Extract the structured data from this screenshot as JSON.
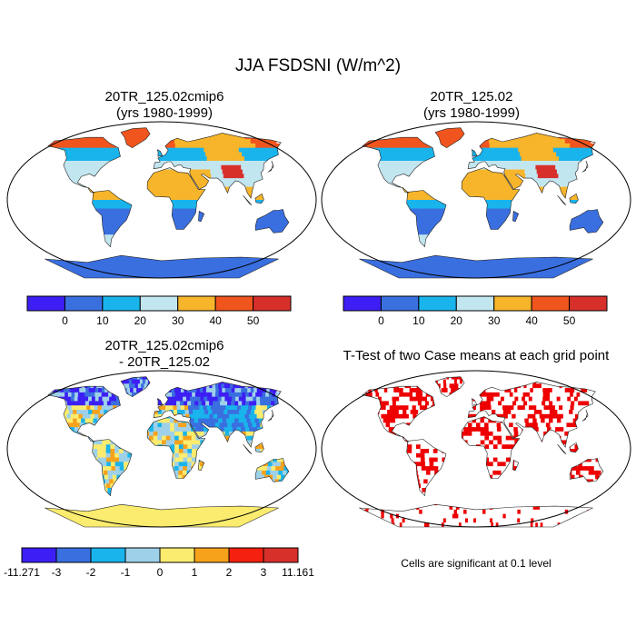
{
  "title": "JJA FSDSNI (W/m^2)",
  "panels": {
    "top_left": {
      "title": "20TR_125.02cmip6",
      "subtitle": "(yrs 1980-1999)"
    },
    "top_right": {
      "title": "20TR_125.02",
      "subtitle": "(yrs 1980-1999)"
    },
    "bottom_left": {
      "title": "20TR_125.02cmip6",
      "subtitle": "- 20TR_125.02"
    },
    "bottom_right": {
      "title": "T-Test of two Case means at each grid point",
      "note": "Cells are significant at 0.1 level"
    }
  },
  "colorbar_top": {
    "colors": [
      "#3d1ff5",
      "#3a6fe0",
      "#19b4ec",
      "#c2e6f0",
      "#f7b52b",
      "#f1551e",
      "#d7302b"
    ],
    "labels": [
      "0",
      "10",
      "20",
      "30",
      "40",
      "50"
    ]
  },
  "colorbar_bottom": {
    "colors": [
      "#3d1ff5",
      "#3a6fe0",
      "#19b4ec",
      "#9ed1e9",
      "#fbec6f",
      "#f7a21b",
      "#f5200f",
      "#d7302b"
    ],
    "labels": [
      "-11.271",
      "-3",
      "-2",
      "-1",
      "0",
      "1",
      "2",
      "3",
      "11.161"
    ]
  },
  "colors": {
    "significant": "#ee0000",
    "ocean": "#ffffff",
    "coast": "#222222"
  }
}
